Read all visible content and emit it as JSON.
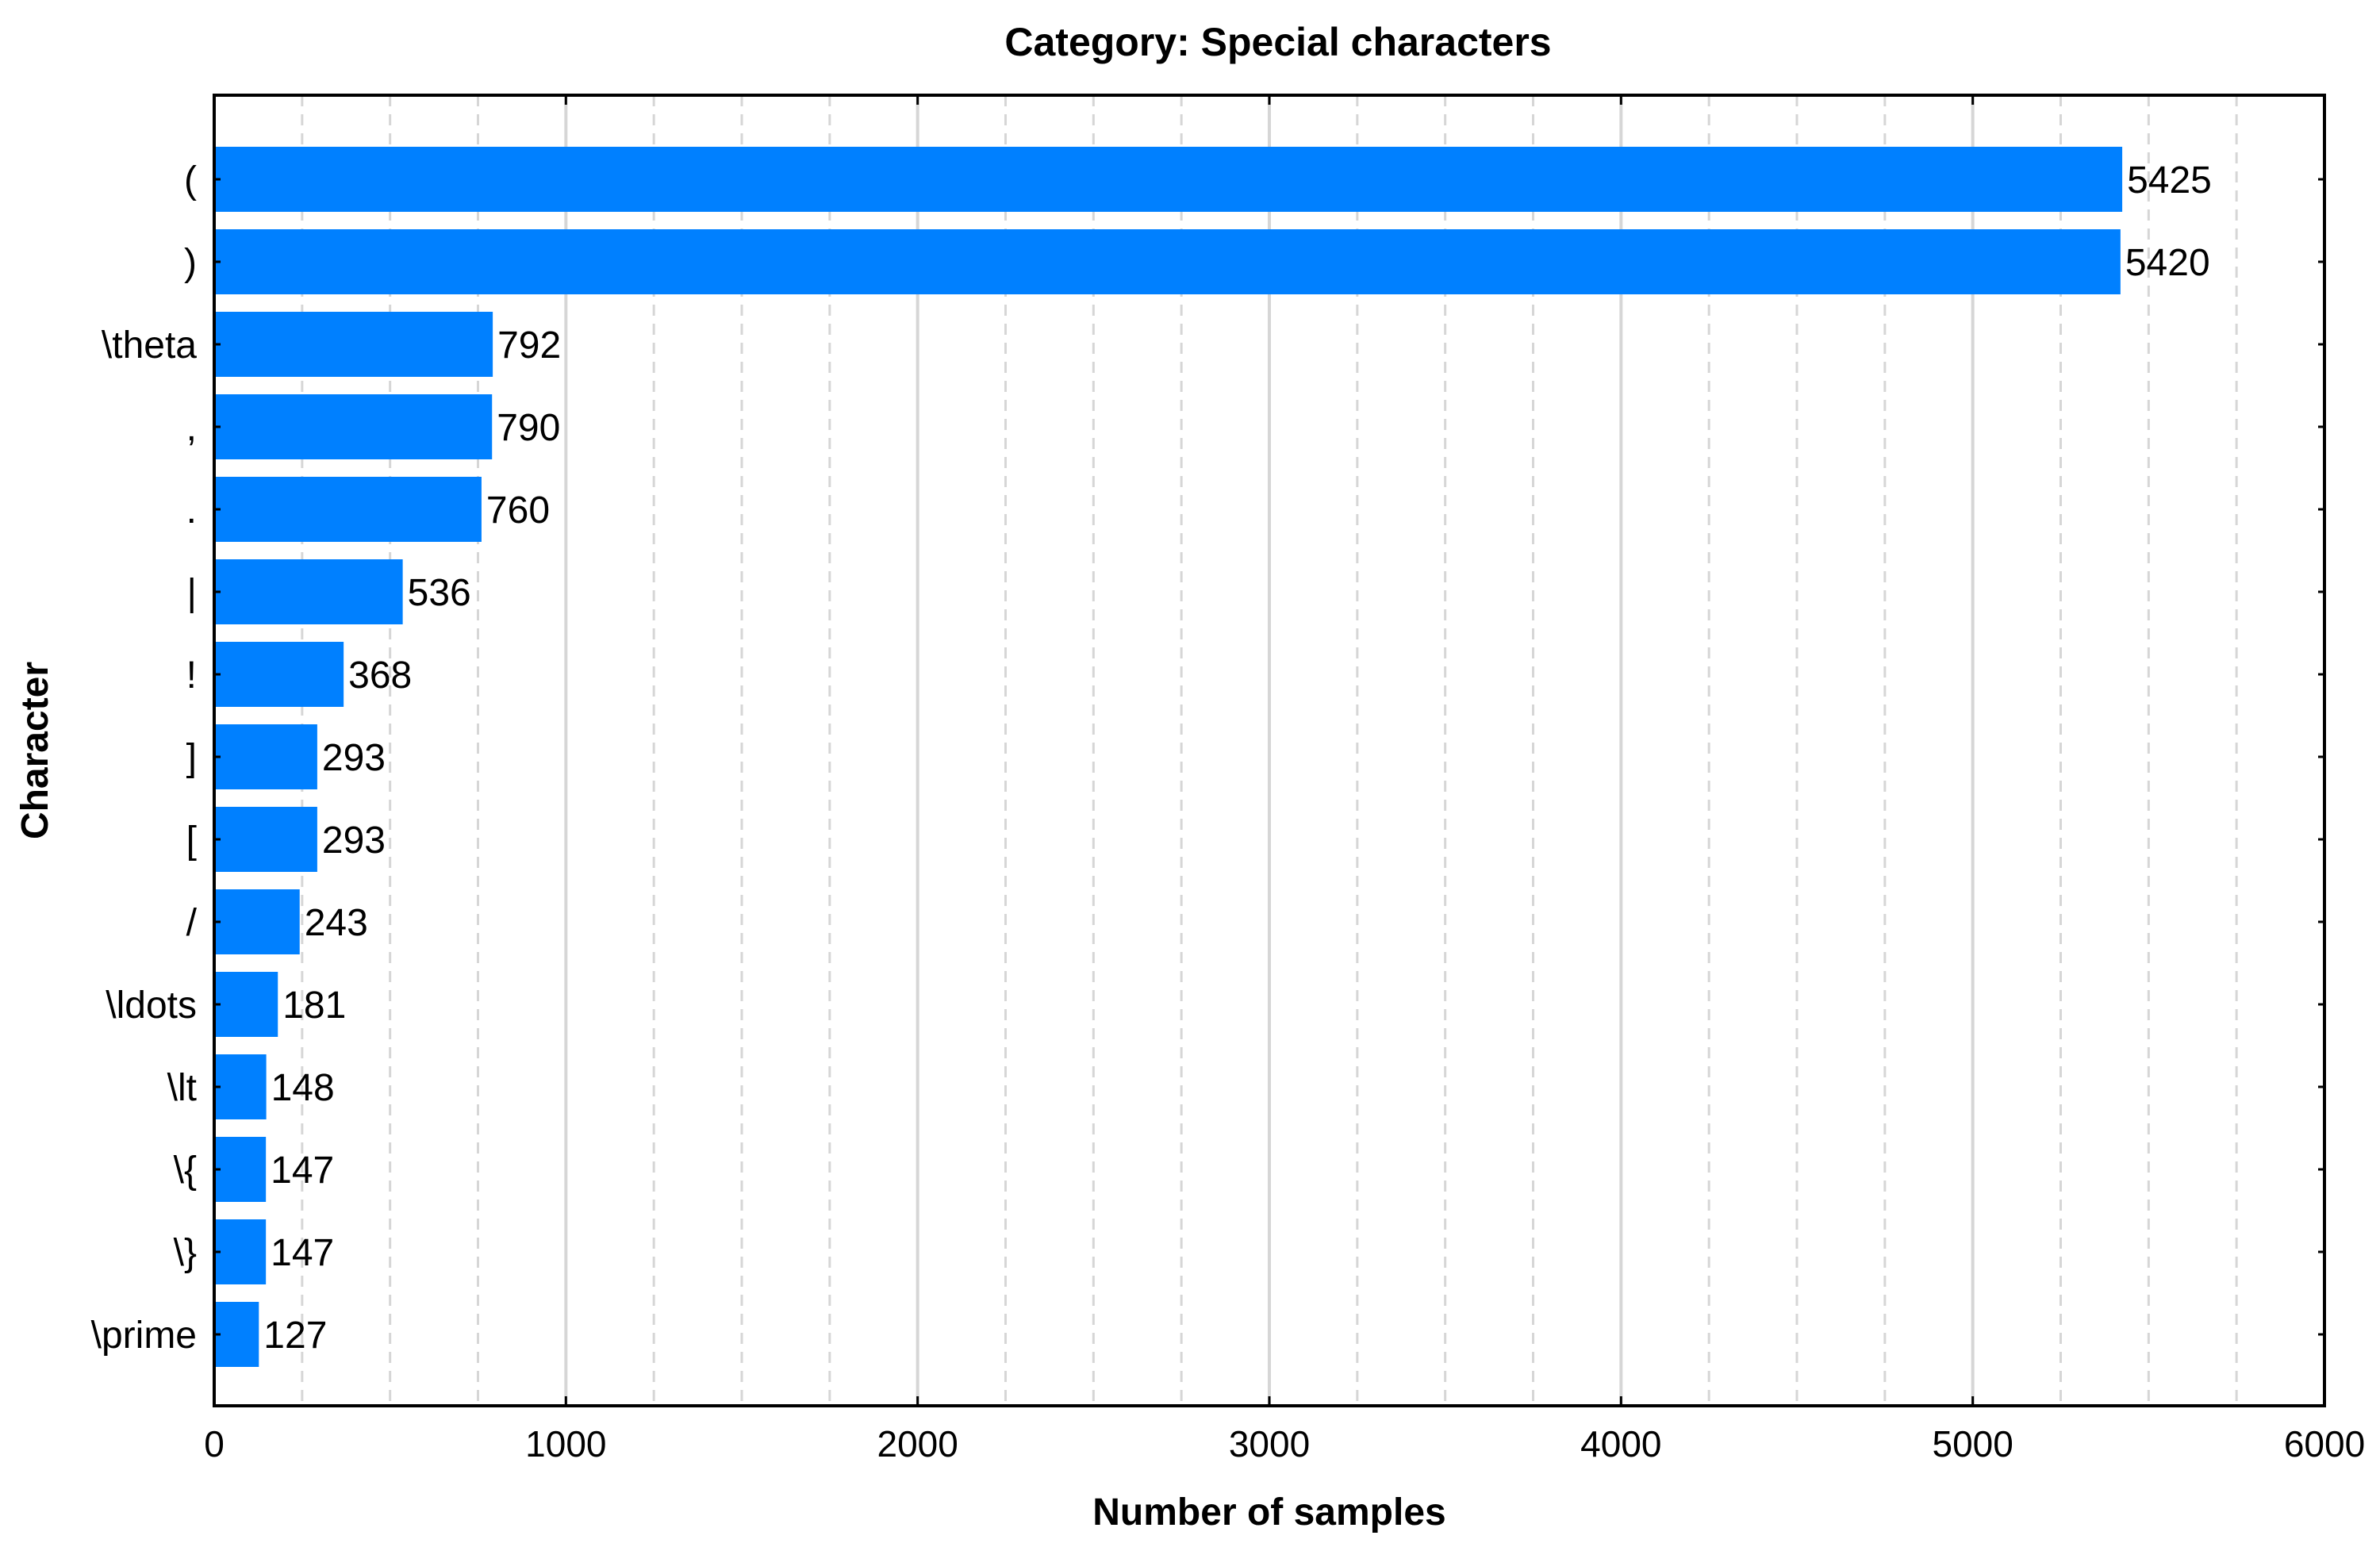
{
  "chart_data": {
    "type": "bar",
    "orientation": "horizontal",
    "title": "Category: Special characters",
    "xlabel": "Number of samples",
    "ylabel": "Character",
    "xlim": [
      0,
      6000
    ],
    "xticks": [
      "0",
      "1000",
      "2000",
      "3000",
      "4000",
      "5000",
      "6000"
    ],
    "categories": [
      "(",
      ")",
      "\\theta",
      ",",
      ".",
      "|",
      "!",
      "]",
      "[",
      "/",
      "\\ldots",
      "\\lt",
      "\\{",
      "\\}",
      "\\prime"
    ],
    "values": [
      5425,
      5420,
      792,
      790,
      760,
      536,
      368,
      293,
      293,
      243,
      181,
      148,
      147,
      147,
      127
    ],
    "bar_color": "#0080ff",
    "grid": true,
    "data_labels": true
  }
}
